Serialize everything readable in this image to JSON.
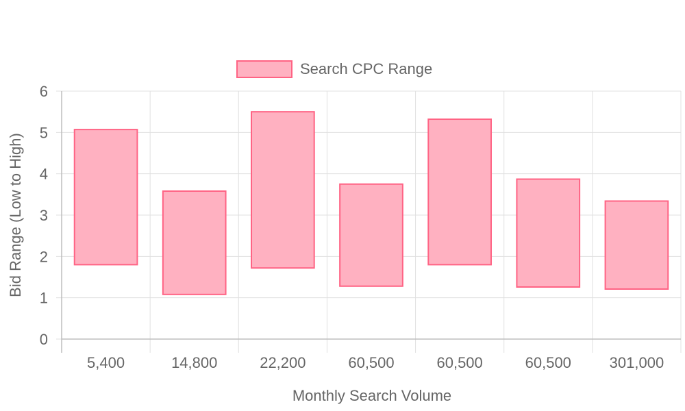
{
  "chart_data": {
    "type": "bar",
    "subtype": "floating-range",
    "categories": [
      "5,400",
      "14,800",
      "22,200",
      "60,500",
      "60,500",
      "60,500",
      "301,000"
    ],
    "series": [
      {
        "name": "Search CPC Range",
        "ranges": [
          [
            1.8,
            5.07
          ],
          [
            1.08,
            3.58
          ],
          [
            1.72,
            5.5
          ],
          [
            1.28,
            3.75
          ],
          [
            1.8,
            5.32
          ],
          [
            1.26,
            3.87
          ],
          [
            1.21,
            3.34
          ]
        ],
        "fill_color": "#ffb1c1",
        "border_color": "#ff6384"
      }
    ],
    "xlabel": "Monthly Search Volume",
    "ylabel": "Bid Range (Low to High)",
    "ylim": [
      0,
      6
    ],
    "yticks": [
      "0",
      "1",
      "2",
      "3",
      "4",
      "5",
      "6"
    ],
    "grid": true,
    "legend_position": "top"
  }
}
